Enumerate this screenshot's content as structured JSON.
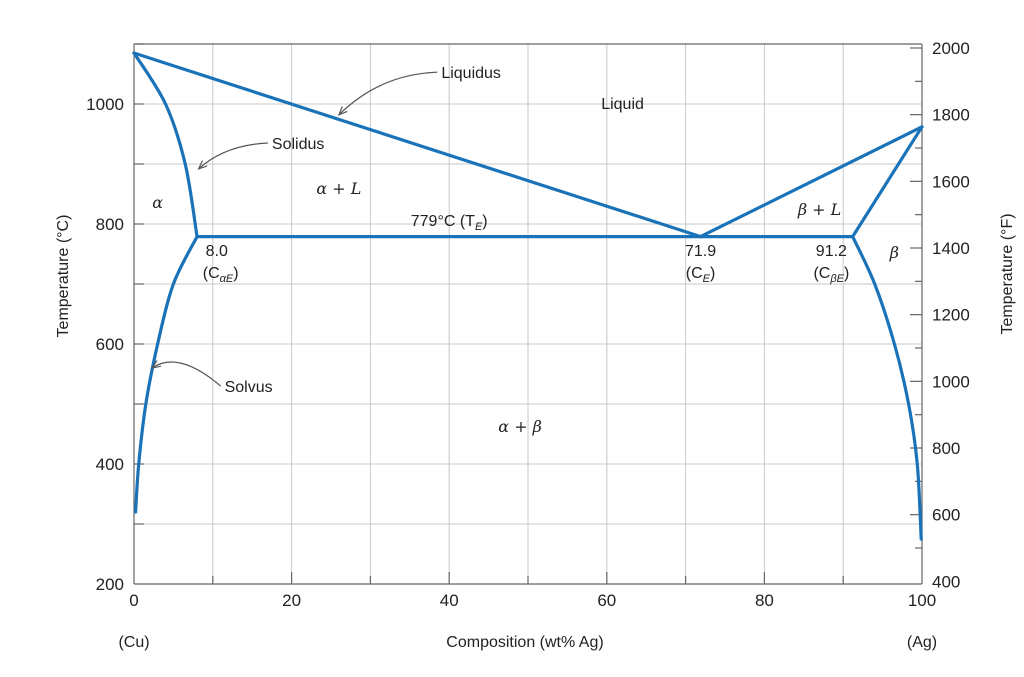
{
  "chart_data": {
    "type": "line",
    "title": "",
    "xlabel": "Composition (wt% Ag)",
    "ylabel": "Temperature (°C)",
    "ylabel_right": "Temperature (°F)",
    "xlim": [
      0,
      100
    ],
    "ylim": [
      200,
      1100
    ],
    "ylim_right": [
      400,
      2012
    ],
    "x_ticks": [
      0,
      20,
      40,
      60,
      80,
      100
    ],
    "y_ticks": [
      200,
      400,
      600,
      800,
      1000
    ],
    "y_ticks_right": [
      400,
      600,
      800,
      1000,
      1200,
      1400,
      1600,
      1800,
      2000
    ],
    "x_end_labels": [
      "(Cu)",
      "(Ag)"
    ],
    "grid": true,
    "series": [
      {
        "key": "liquidus_cu",
        "x": [
          0,
          71.9
        ],
        "y": [
          1085,
          779
        ]
      },
      {
        "key": "liquidus_ag",
        "x": [
          71.9,
          100
        ],
        "y": [
          779,
          962
        ]
      },
      {
        "key": "solidus_alpha",
        "x": [
          0,
          4,
          6.5,
          8.0
        ],
        "y": [
          1085,
          1000,
          900,
          779
        ]
      },
      {
        "key": "solidus_beta",
        "x": [
          91.2,
          100
        ],
        "y": [
          779,
          962
        ]
      },
      {
        "key": "eutectic",
        "x": [
          8.0,
          91.2
        ],
        "y": [
          779,
          779
        ]
      },
      {
        "key": "solvus_alpha",
        "x": [
          8.0,
          5,
          3,
          1.5,
          0.6,
          0.2
        ],
        "y": [
          779,
          700,
          600,
          500,
          400,
          320
        ]
      },
      {
        "key": "solvus_beta",
        "x": [
          91.2,
          94,
          96.5,
          98.3,
          99.4,
          99.9
        ],
        "y": [
          779,
          700,
          600,
          500,
          400,
          275
        ]
      }
    ],
    "annotations": [
      {
        "key": "liquid",
        "text": "Liquid",
        "x": 62,
        "y": 1000
      },
      {
        "key": "alpha",
        "text": "α",
        "x": 3,
        "y": 835
      },
      {
        "key": "alpha_l",
        "text": "α + L",
        "x": 26,
        "y": 858
      },
      {
        "key": "beta_l",
        "text": "β + L",
        "x": 87,
        "y": 823
      },
      {
        "key": "beta",
        "text": "β",
        "x": 96.5,
        "y": 752
      },
      {
        "key": "alpha_beta",
        "text": "α + β",
        "x": 49,
        "y": 462
      },
      {
        "key": "te",
        "text": "779°C (T",
        "sub": "E",
        "x": 40,
        "y": 805
      },
      {
        "key": "c_alpha_val",
        "text": "8.0",
        "x": 10.5,
        "y": 755
      },
      {
        "key": "c_alpha_lbl",
        "text": "(C",
        "sub": "αE",
        "x": 11,
        "y": 718
      },
      {
        "key": "ce_val",
        "text": "71.9",
        "x": 71.9,
        "y": 755
      },
      {
        "key": "ce_lbl",
        "text": "(C",
        "sub": "E",
        "x": 71.9,
        "y": 718
      },
      {
        "key": "c_beta_val",
        "text": "91.2",
        "x": 88.5,
        "y": 755
      },
      {
        "key": "c_beta_lbl",
        "text": "(C",
        "sub": "βE",
        "x": 88.5,
        "y": 718
      }
    ],
    "callouts": [
      {
        "key": "liquidus",
        "text": "Liquidus",
        "label_x": 39,
        "label_y": 1053,
        "target_x": 26,
        "target_y": 982
      },
      {
        "key": "solidus",
        "text": "Solidus",
        "label_x": 17.5,
        "label_y": 935,
        "target_x": 8.2,
        "target_y": 892
      },
      {
        "key": "solvus",
        "text": "Solvus",
        "label_x": 11.5,
        "label_y": 530,
        "target_x": 2.3,
        "target_y": 560
      }
    ]
  }
}
